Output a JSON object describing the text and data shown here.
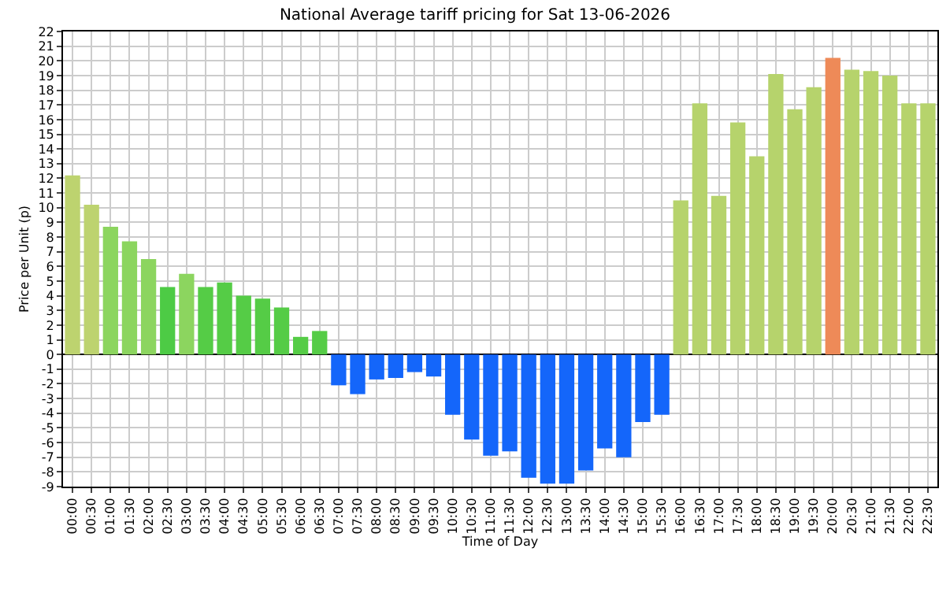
{
  "chart_data": {
    "type": "bar",
    "title": "National Average tariff pricing for Sat 13-06-2026",
    "xlabel": "Time of Day",
    "ylabel": "Price per Unit (p)",
    "categories": [
      "00:00",
      "00:30",
      "01:00",
      "01:30",
      "02:00",
      "02:30",
      "03:00",
      "03:30",
      "04:00",
      "04:30",
      "05:00",
      "05:30",
      "06:00",
      "06:30",
      "07:00",
      "07:30",
      "08:00",
      "08:30",
      "09:00",
      "09:30",
      "10:00",
      "10:30",
      "11:00",
      "11:30",
      "12:00",
      "12:30",
      "13:00",
      "13:30",
      "14:00",
      "14:30",
      "15:00",
      "15:30",
      "16:00",
      "16:30",
      "17:00",
      "17:30",
      "18:00",
      "18:30",
      "19:00",
      "19:30",
      "20:00",
      "20:30",
      "21:00",
      "21:30",
      "22:00",
      "22:30"
    ],
    "values": [
      12.2,
      10.2,
      8.7,
      7.7,
      6.5,
      4.6,
      5.5,
      4.6,
      4.9,
      4.0,
      3.8,
      3.2,
      1.2,
      1.6,
      -2.1,
      -2.7,
      -1.7,
      -1.6,
      -1.2,
      -1.5,
      -4.1,
      -5.8,
      -6.9,
      -6.6,
      -8.4,
      -8.8,
      -8.8,
      -7.9,
      -6.4,
      -7.0,
      -4.6,
      -4.1,
      10.5,
      17.1,
      10.8,
      15.8,
      13.5,
      19.1,
      16.7,
      18.2,
      20.2,
      19.4,
      19.3,
      19.0,
      17.1,
      17.1
    ],
    "colors": [
      "#bdd36f",
      "#bdd36f",
      "#8cd55f",
      "#8cd55f",
      "#8cd55f",
      "#4dcb45",
      "#8cd55f",
      "#55cc46",
      "#55cc46",
      "#55cc46",
      "#55cc46",
      "#55cc46",
      "#55cc46",
      "#55cc46",
      "#1466fa",
      "#1466fa",
      "#1466fa",
      "#1466fa",
      "#1466fa",
      "#1466fa",
      "#1466fa",
      "#1466fa",
      "#1466fa",
      "#1466fa",
      "#1466fa",
      "#1466fa",
      "#1466fa",
      "#1466fa",
      "#1466fa",
      "#1466fa",
      "#1466fa",
      "#1466fa",
      "#b6d36c",
      "#b6d36c",
      "#b6d36c",
      "#b6d36c",
      "#b6d36c",
      "#b6d36c",
      "#b6d36c",
      "#b6d36c",
      "#ee8a58",
      "#b6d36c",
      "#b6d36c",
      "#b6d36c",
      "#b6d36c",
      "#b6d36c"
    ],
    "ylim": [
      -9,
      22
    ],
    "yticks": [
      -9,
      -8,
      -7,
      -6,
      -5,
      -4,
      -3,
      -2,
      -1,
      0,
      1,
      2,
      3,
      4,
      5,
      6,
      7,
      8,
      9,
      10,
      11,
      12,
      13,
      14,
      15,
      16,
      17,
      18,
      19,
      20,
      21,
      22
    ],
    "grid": true
  }
}
